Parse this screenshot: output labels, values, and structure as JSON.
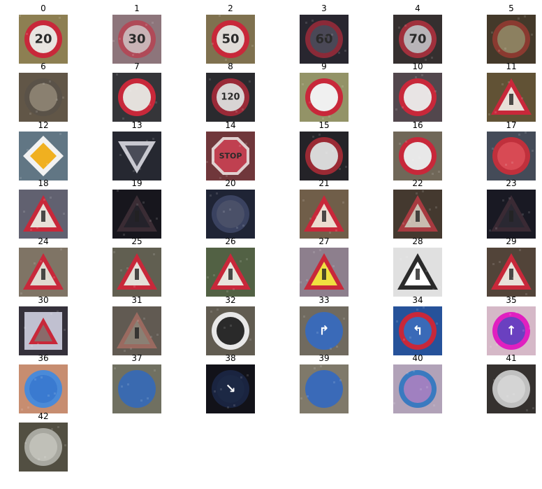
{
  "figure": {
    "items": [
      {
        "label": "0",
        "bg": "#9a8a5a",
        "shape": "circle",
        "rim": "#c8283a",
        "inner": "#e8e4e0",
        "glyph": "20"
      },
      {
        "label": "1",
        "bg": "#9a7f86",
        "shape": "circle",
        "rim": "#b04a58",
        "inner": "#c9b3b6",
        "glyph": "30"
      },
      {
        "label": "2",
        "bg": "#8a7b56",
        "shape": "circle",
        "rim": "#c8283a",
        "inner": "#e0dcd8",
        "glyph": "50"
      },
      {
        "label": "3",
        "bg": "#2c2a34",
        "shape": "circle",
        "rim": "#8a2a38",
        "inner": "#4a4856",
        "glyph": "60"
      },
      {
        "label": "4",
        "bg": "#3a3434",
        "shape": "circle",
        "rim": "#a0303c",
        "inner": "#b8b4b8",
        "glyph": "70"
      },
      {
        "label": "5",
        "bg": "#4a3e2e",
        "shape": "circle",
        "rim": "#8a3a30",
        "inner": "#8c8060",
        "glyph": ""
      },
      {
        "label": "6",
        "bg": "#6a5e4e",
        "shape": "circle",
        "rim": "#5a5248",
        "inner": "#8a8070",
        "glyph": ""
      },
      {
        "label": "7",
        "bg": "#3a3a3e",
        "shape": "circle",
        "rim": "#c8283a",
        "inner": "#e4e0dc",
        "glyph": ""
      },
      {
        "label": "8",
        "bg": "#2e2e32",
        "shape": "circle",
        "rim": "#9a2a38",
        "inner": "#d8d4d4",
        "glyph": "120"
      },
      {
        "label": "9",
        "bg": "#a0a070",
        "shape": "circle",
        "rim": "#c8283a",
        "inner": "#f0f0f0",
        "glyph": ""
      },
      {
        "label": "10",
        "bg": "#5a4e54",
        "shape": "circle",
        "rim": "#c8283a",
        "inner": "#e8e4e4",
        "glyph": ""
      },
      {
        "label": "11",
        "bg": "#6a5a3a",
        "shape": "triangle",
        "rim": "#c8283a",
        "inner": "#e8e0d8",
        "glyph": ""
      },
      {
        "label": "12",
        "bg": "#6a8090",
        "shape": "diamond",
        "rim": "#f2f2f2",
        "inner": "#f0b020",
        "glyph": ""
      },
      {
        "label": "13",
        "bg": "#2a2c36",
        "shape": "yield",
        "rim": "#c8c8d0",
        "inner": "#4a4c58",
        "glyph": ""
      },
      {
        "label": "14",
        "bg": "#7a3c40",
        "shape": "octagon",
        "rim": "#e0d0d0",
        "inner": "#c04050",
        "glyph": "STOP"
      },
      {
        "label": "15",
        "bg": "#28262c",
        "shape": "circle",
        "rim": "#9a2a34",
        "inner": "#d8d8d8",
        "glyph": ""
      },
      {
        "label": "16",
        "bg": "#7a7060",
        "shape": "circle",
        "rim": "#c8283a",
        "inner": "#e8e8e8",
        "glyph": ""
      },
      {
        "label": "17",
        "bg": "#4a5260",
        "shape": "circle",
        "rim": "#c0303c",
        "inner": "#d84a54",
        "glyph": ""
      },
      {
        "label": "18",
        "bg": "#6a6a7a",
        "shape": "triangle",
        "rim": "#c8283a",
        "inner": "#e8e0d8",
        "glyph": ""
      },
      {
        "label": "19",
        "bg": "#1a1820",
        "shape": "triangle",
        "rim": "#3a2c34",
        "inner": "#24222a",
        "glyph": ""
      },
      {
        "label": "20",
        "bg": "#22283a",
        "shape": "circle",
        "rim": "#3a4260",
        "inner": "#4a5068",
        "glyph": ""
      },
      {
        "label": "21",
        "bg": "#7a6650",
        "shape": "triangle",
        "rim": "#c8283a",
        "inner": "#ecdcd0",
        "glyph": ""
      },
      {
        "label": "22",
        "bg": "#4a3e34",
        "shape": "triangle",
        "rim": "#a83a40",
        "inner": "#c8bcb0",
        "glyph": ""
      },
      {
        "label": "23",
        "bg": "#1c1c26",
        "shape": "triangle",
        "rim": "#3a2a34",
        "inner": "#2a2832",
        "glyph": ""
      },
      {
        "label": "24",
        "bg": "#8a7e6e",
        "shape": "triangle",
        "rim": "#c8283a",
        "inner": "#e0dad0",
        "glyph": ""
      },
      {
        "label": "25",
        "bg": "#6a6858",
        "shape": "triangle",
        "rim": "#c8283a",
        "inner": "#e4e0d8",
        "glyph": ""
      },
      {
        "label": "26",
        "bg": "#5a6a4a",
        "shape": "triangle",
        "rim": "#c8283a",
        "inner": "#e8e4dc",
        "glyph": ""
      },
      {
        "label": "27",
        "bg": "#9a8a9a",
        "shape": "triangle",
        "rim": "#c8283a",
        "inner": "#f0e040",
        "glyph": ""
      },
      {
        "label": "28",
        "bg": "#f4f4f4",
        "shape": "triangle",
        "rim": "#2a2a2a",
        "inner": "#ffffff",
        "glyph": ""
      },
      {
        "label": "29",
        "bg": "#5a4a3e",
        "shape": "triangle",
        "rim": "#c8283a",
        "inner": "#e8e0d8",
        "glyph": ""
      },
      {
        "label": "30",
        "bg": "#3a3640",
        "shape": "square",
        "rim": "#c0c0d0",
        "inner": "#8a6a6a",
        "glyph": ""
      },
      {
        "label": "31",
        "bg": "#6a625a",
        "shape": "triangle",
        "rim": "#9a6a60",
        "inner": "#8a8074",
        "glyph": ""
      },
      {
        "label": "32",
        "bg": "#6a6458",
        "shape": "circle",
        "rim": "#e8e8e8",
        "inner": "#2a2a2a",
        "glyph": ""
      },
      {
        "label": "33",
        "bg": "#7a7468",
        "shape": "circle",
        "rim": "#3a6ab8",
        "inner": "#3a6ab8",
        "glyph": "↱"
      },
      {
        "label": "34",
        "bg": "#2a5aa8",
        "shape": "circle",
        "rim": "#c8283a",
        "inner": "#3a6ab8",
        "glyph": "↰"
      },
      {
        "label": "35",
        "bg": "#e8c8d8",
        "shape": "circle",
        "rim": "#e020c0",
        "inner": "#6a40c0",
        "glyph": "↑"
      },
      {
        "label": "36",
        "bg": "#d89a7a",
        "shape": "circle",
        "rim": "#4a8ad8",
        "inner": "#3a7ad0",
        "glyph": ""
      },
      {
        "label": "37",
        "bg": "#7a7a6a",
        "shape": "circle",
        "rim": "#3a6ab0",
        "inner": "#3a6ab0",
        "glyph": ""
      },
      {
        "label": "38",
        "bg": "#14141c",
        "shape": "circle",
        "rim": "#1a2440",
        "inner": "#1c2844",
        "glyph": "↘"
      },
      {
        "label": "39",
        "bg": "#8a8474",
        "shape": "circle",
        "rim": "#3a6ab8",
        "inner": "#3a6ab8",
        "glyph": ""
      },
      {
        "label": "40",
        "bg": "#c0b0c8",
        "shape": "circle",
        "rim": "#3a7ac0",
        "inner": "#a080c0",
        "glyph": ""
      },
      {
        "label": "41",
        "bg": "#3a3634",
        "shape": "circle",
        "rim": "#c0c0c0",
        "inner": "#d4d4d4",
        "glyph": ""
      },
      {
        "label": "42",
        "bg": "#5a5648",
        "shape": "circle",
        "rim": "#a8a8a0",
        "inner": "#c0c0b8",
        "glyph": ""
      }
    ]
  }
}
